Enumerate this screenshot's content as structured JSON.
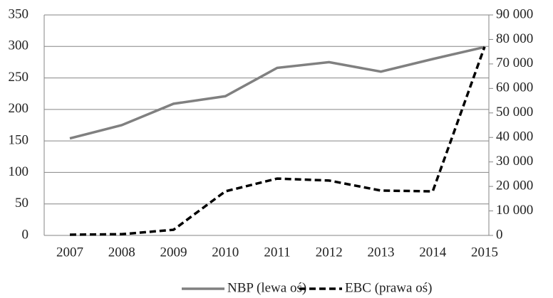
{
  "chart_data": {
    "type": "line",
    "categories": [
      "2007",
      "2008",
      "2009",
      "2010",
      "2011",
      "2012",
      "2013",
      "2014",
      "2015"
    ],
    "series": [
      {
        "name": "NBP (lewa oś)",
        "color": "#808080",
        "dash": "solid",
        "axis": "y",
        "values": [
          154,
          175,
          209,
          221,
          266,
          275,
          260,
          280,
          299
        ]
      },
      {
        "name": "EBC (prawa oś)",
        "color": "#000000",
        "dash": "dashed",
        "axis": "y2",
        "values": [
          300,
          500,
          2300,
          18000,
          23200,
          22400,
          18300,
          18000,
          77000
        ]
      }
    ],
    "ylim": [
      0,
      350
    ],
    "yticks": [
      0,
      50,
      100,
      150,
      200,
      250,
      300,
      350
    ],
    "y2lim": [
      0,
      90000
    ],
    "y2ticks": [
      0,
      {
        "value": 10000,
        "label": "10 000"
      },
      {
        "value": 20000,
        "label": "20 000"
      },
      {
        "value": 30000,
        "label": "30 000"
      },
      {
        "value": 40000,
        "label": "40 000"
      },
      {
        "value": 50000,
        "label": "50 000"
      },
      {
        "value": 60000,
        "label": "60 000"
      },
      {
        "value": 70000,
        "label": "70 000"
      },
      {
        "value": 80000,
        "label": "80 000"
      },
      {
        "value": 90000,
        "label": "90 000"
      }
    ],
    "grid": true,
    "legend": "bottom"
  }
}
